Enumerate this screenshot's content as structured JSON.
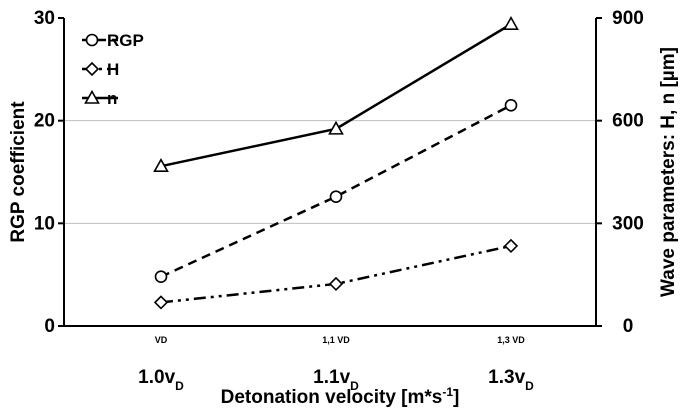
{
  "chart_data": {
    "type": "line",
    "categories": [
      "VD",
      "1,1 VD",
      "1,3 VD"
    ],
    "category_labels": [
      {
        "base": "1.0v",
        "sub": "D"
      },
      {
        "base": "1.1v",
        "sub": "D"
      },
      {
        "base": "1.3v",
        "sub": "D"
      }
    ],
    "xlabel": {
      "text": "Detonation velocity [m*s",
      "sup": "-1",
      "end": "]"
    },
    "ylabel_left": "RGP coefficient",
    "ylabel_right": "Wave parameters: H, n [µm]",
    "ylim_left": [
      0,
      30
    ],
    "ylim_right": [
      0,
      900
    ],
    "yticks_left": [
      0,
      10,
      20,
      30
    ],
    "yticks_right": [
      0,
      300,
      600,
      900
    ],
    "grid": true,
    "legend_position": "top-left",
    "series": [
      {
        "name": "RGP",
        "axis": "left",
        "marker": "circle",
        "line": "dashed",
        "values": [
          4.8,
          12.6,
          21.5
        ]
      },
      {
        "name": "H",
        "axis": "right",
        "marker": "diamond",
        "line": "dash-dot-dot",
        "values": [
          69,
          123,
          234
        ]
      },
      {
        "name": "n",
        "axis": "right",
        "marker": "triangle",
        "line": "solid",
        "values": [
          467,
          576,
          882
        ]
      }
    ],
    "colors": {
      "line": "#000000",
      "grid": "#bfbfbf",
      "marker_fill": "#ffffff"
    }
  }
}
